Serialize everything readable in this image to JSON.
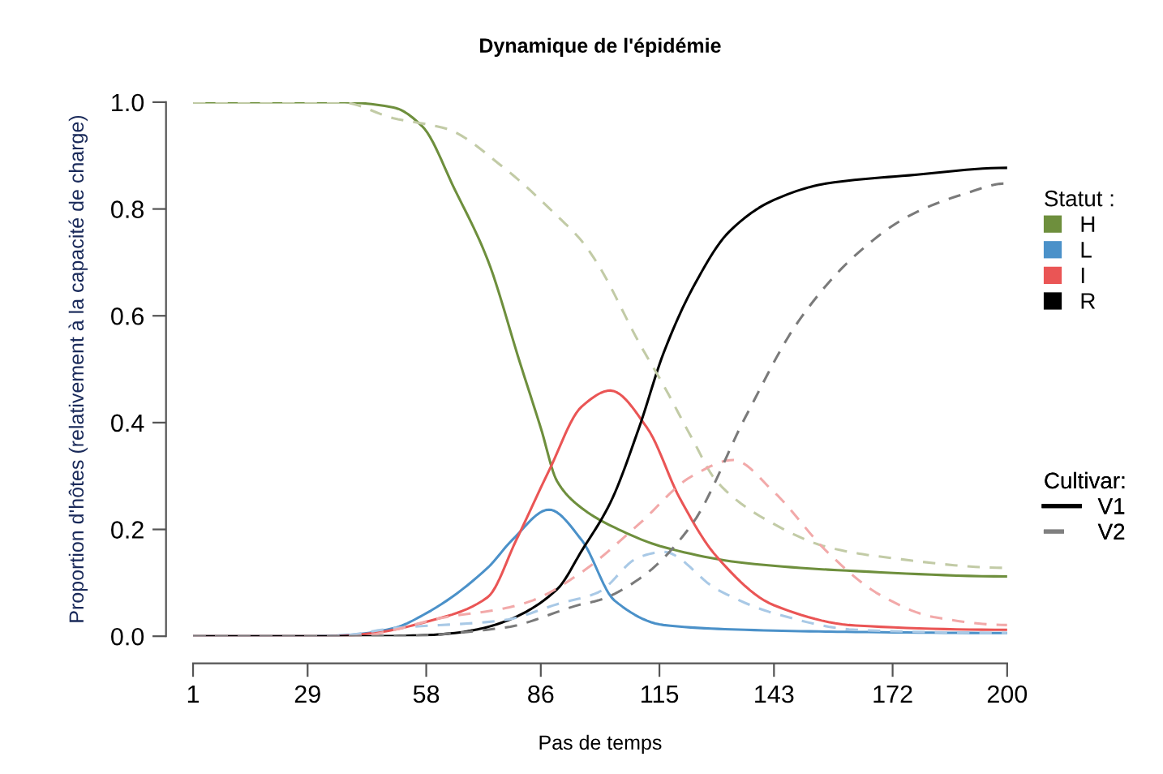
{
  "chart_data": {
    "type": "line",
    "title": "Dynamique de l'épidémie",
    "xlabel": "Pas de temps",
    "ylabel": "Proportion d'hôtes (relativement à la capacité de charge)",
    "xlim": [
      1,
      200
    ],
    "xticks": [
      1,
      29,
      58,
      86,
      115,
      143,
      172,
      200
    ],
    "ylim": [
      0,
      1
    ],
    "yticks": [
      {
        "value": 0,
        "label": "0.0"
      },
      0.2,
      0.4,
      0.6,
      0.8,
      {
        "value": 1,
        "label": "1.0"
      }
    ],
    "grid": false,
    "legend": "right",
    "marker": "none",
    "legend_title": "Statut :",
    "annotations": [
      "Cultivar:",
      "V1",
      "V2"
    ],
    "series": [
      {
        "name": "H",
        "color": "#6e8f3d",
        "line_style": "solid",
        "x": [
          1,
          37,
          50,
          57,
          65,
          73,
          81,
          86,
          90,
          96,
          105,
          116,
          136,
          163,
          200
        ],
        "values": [
          1.0,
          1.0,
          0.99,
          0.955,
          0.836,
          0.705,
          0.51,
          0.39,
          0.29,
          0.24,
          0.2,
          0.167,
          0.137,
          0.122,
          0.112
        ]
      },
      {
        "name": "L",
        "color": "#4b91c9",
        "line_style": "solid",
        "x": [
          1,
          30,
          40,
          50,
          58,
          73,
          79,
          88,
          96,
          104,
          116,
          136,
          163,
          200
        ],
        "values": [
          0.0,
          0.0,
          0.003,
          0.015,
          0.043,
          0.128,
          0.18,
          0.237,
          0.18,
          0.067,
          0.021,
          0.012,
          0.008,
          0.006
        ]
      },
      {
        "name": "I",
        "color": "#ea5555",
        "line_style": "solid",
        "x": [
          1,
          35,
          45,
          58,
          73,
          80,
          88,
          96,
          103,
          112,
          120,
          129,
          143,
          163,
          200
        ],
        "values": [
          0.0,
          0.0,
          0.006,
          0.027,
          0.073,
          0.18,
          0.31,
          0.43,
          0.46,
          0.39,
          0.258,
          0.149,
          0.058,
          0.02,
          0.012
        ]
      },
      {
        "name": "R",
        "color": "#000000",
        "line_style": "solid",
        "x": [
          1,
          45,
          58,
          65,
          70,
          77,
          90,
          96,
          103,
          110,
          116,
          123,
          132,
          143,
          156,
          176,
          200
        ],
        "values": [
          0.0,
          0.0,
          0.002,
          0.006,
          0.012,
          0.027,
          0.088,
          0.16,
          0.25,
          0.39,
          0.53,
          0.65,
          0.757,
          0.817,
          0.848,
          0.863,
          0.877
        ]
      },
      {
        "color": "#c2cba6",
        "line_style": "dashed",
        "x": [
          1,
          37,
          50,
          63,
          77,
          90,
          96,
          100,
          110,
          116,
          123,
          129,
          143,
          156,
          169,
          200
        ],
        "values": [
          1.0,
          1.0,
          0.97,
          0.95,
          0.877,
          0.787,
          0.74,
          0.696,
          0.55,
          0.47,
          0.37,
          0.29,
          0.21,
          0.167,
          0.149,
          0.128
        ]
      },
      {
        "color": "#a9c9e6",
        "line_style": "dashed",
        "x": [
          1,
          35,
          50,
          77,
          90,
          100,
          110,
          116,
          129,
          143,
          163,
          200
        ],
        "values": [
          0.0,
          0.0,
          0.015,
          0.03,
          0.06,
          0.082,
          0.148,
          0.158,
          0.088,
          0.043,
          0.012,
          0.006
        ]
      },
      {
        "color": "#f2a9a9",
        "line_style": "dashed",
        "x": [
          1,
          40,
          63,
          77,
          84,
          96,
          110,
          123,
          133,
          143,
          156,
          169,
          182,
          200
        ],
        "values": [
          0.0,
          0.0,
          0.036,
          0.052,
          0.067,
          0.12,
          0.21,
          0.3,
          0.33,
          0.27,
          0.158,
          0.077,
          0.036,
          0.021
        ]
      },
      {
        "color": "#7a7a7a",
        "line_style": "dashed",
        "x": [
          1,
          50,
          77,
          96,
          100,
          110,
          123,
          136,
          149,
          163,
          176,
          189,
          200
        ],
        "values": [
          0.0,
          0.0,
          0.016,
          0.06,
          0.067,
          0.107,
          0.21,
          0.41,
          0.59,
          0.714,
          0.787,
          0.827,
          0.848
        ]
      }
    ]
  }
}
